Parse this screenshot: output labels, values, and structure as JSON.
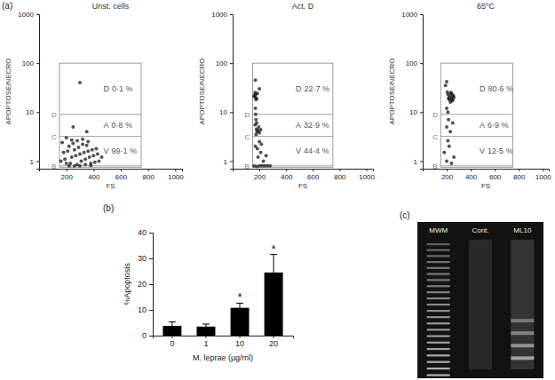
{
  "chart_data": [
    {
      "type": "scatter",
      "panel": "(a)",
      "title": "Unst. cells",
      "xlabel": "FS",
      "ylabel": "APOPTOSE/NECRO",
      "log": "y",
      "color": "#1a1a1a",
      "xlim": [
        0,
        1050
      ],
      "ylim": [
        0.7,
        1000
      ],
      "xticks": [
        200,
        400,
        600,
        800,
        1000
      ],
      "yticks": [
        1,
        10,
        100,
        1000
      ],
      "x": [
        160,
        180,
        200,
        220,
        240,
        260,
        280,
        300,
        320,
        340,
        360,
        380,
        400,
        420,
        440,
        460,
        170,
        190,
        210,
        230,
        250,
        270,
        290,
        310,
        330,
        350,
        370,
        390,
        410,
        430,
        200,
        240,
        280,
        320,
        360,
        260,
        300,
        340,
        220,
        380,
        300,
        250,
        350
      ],
      "values": [
        1.0,
        1.5,
        0.9,
        2.0,
        1.2,
        1.7,
        0.85,
        1.4,
        2.2,
        1.1,
        1.6,
        0.9,
        1.3,
        1.8,
        1.0,
        1.2,
        2.4,
        1.1,
        1.6,
        0.9,
        2.3,
        1.3,
        1.9,
        1.0,
        1.5,
        2.1,
        1.2,
        1.7,
        0.95,
        1.4,
        3.0,
        2.7,
        2.6,
        2.8,
        2.5,
        0.8,
        0.8,
        0.85,
        0.8,
        0.82,
        40,
        5,
        4
      ],
      "gate": {
        "x": [
          150,
          750
        ],
        "y": [
          0.75,
          100
        ]
      },
      "gate_lines": [
        {
          "name": "D",
          "value": 9
        },
        {
          "name": "C",
          "value": 3.2
        },
        {
          "name": "B",
          "value": 0.8
        }
      ],
      "regions": [
        {
          "name": "D",
          "value": 0.1,
          "label": "0·1 %"
        },
        {
          "name": "A",
          "value": 0.8,
          "label": "0·8 %"
        },
        {
          "name": "V",
          "value": 99.1,
          "label": "99·1 %"
        }
      ]
    },
    {
      "type": "scatter",
      "title": "Act. D",
      "xlabel": "FS",
      "ylabel": "APOPTOSE/NECRO",
      "log": "y",
      "color": "#1a1a1a",
      "xlim": [
        0,
        1050
      ],
      "ylim": [
        0.7,
        1000
      ],
      "xticks": [
        200,
        400,
        600,
        800,
        1000
      ],
      "yticks": [
        1,
        10,
        100,
        1000
      ],
      "x": [
        165,
        170,
        175,
        168,
        172,
        180,
        160,
        185,
        170,
        172,
        175,
        168,
        178,
        182,
        190,
        200,
        210,
        175,
        180,
        195,
        160,
        180,
        200,
        220,
        240,
        260,
        280,
        190,
        210,
        230,
        250,
        170,
        200,
        185,
        215,
        170,
        200
      ],
      "values": [
        22,
        20,
        18,
        25,
        23,
        19,
        21,
        24,
        12,
        9,
        7,
        5.5,
        4.5,
        4,
        4.2,
        3.8,
        4.4,
        3.5,
        6,
        5,
        0.8,
        0.78,
        0.8,
        0.8,
        0.8,
        0.8,
        0.8,
        1.2,
        1.5,
        1.0,
        1.3,
        2.0,
        2.5,
        1.8,
        2.2,
        45,
        30
      ],
      "gate": {
        "x": [
          150,
          750
        ],
        "y": [
          0.75,
          100
        ]
      },
      "gate_lines": [
        {
          "name": "D",
          "value": 9
        },
        {
          "name": "C",
          "value": 3.2
        },
        {
          "name": "B",
          "value": 0.8
        }
      ],
      "regions": [
        {
          "name": "D",
          "value": 22.7,
          "label": "22·7 %"
        },
        {
          "name": "A",
          "value": 32.9,
          "label": "32·9 %"
        },
        {
          "name": "V",
          "value": 44.4,
          "label": "44·4 %"
        }
      ]
    },
    {
      "type": "scatter",
      "title": "65ºC",
      "xlabel": "FS",
      "ylabel": "APOPTOSE/NECRO",
      "log": "y",
      "color": "#1a1a1a",
      "xlim": [
        0,
        1050
      ],
      "ylim": [
        0.7,
        1000
      ],
      "xticks": [
        200,
        400,
        600,
        800,
        1000
      ],
      "yticks": [
        1,
        10,
        100,
        1000
      ],
      "x": [
        220,
        230,
        240,
        250,
        210,
        225,
        235,
        245,
        255,
        215,
        260,
        205,
        230,
        240,
        250,
        190,
        200,
        200,
        230,
        250,
        215,
        180,
        200,
        220,
        240,
        260,
        210,
        200,
        210
      ],
      "values": [
        20,
        22,
        19,
        21,
        23,
        18,
        25,
        17,
        22,
        19,
        20,
        26,
        16,
        24,
        18,
        35,
        42,
        5,
        4,
        6,
        7,
        1.5,
        1.0,
        2.0,
        0.9,
        1.2,
        2.6,
        12,
        10
      ],
      "gate": {
        "x": [
          150,
          750
        ],
        "y": [
          0.75,
          100
        ]
      },
      "gate_lines": [
        {
          "name": "D",
          "value": 9
        },
        {
          "name": "C",
          "value": 3.2
        },
        {
          "name": "B",
          "value": 0.8
        }
      ],
      "regions": [
        {
          "name": "D",
          "value": 80.6,
          "label": "80·6 %"
        },
        {
          "name": "A",
          "value": 6.9,
          "label": "6·9 %"
        },
        {
          "name": "V",
          "value": 12.5,
          "label": "12·5 %"
        }
      ]
    },
    {
      "type": "bar",
      "panel": "(b)",
      "xlabel": "M. leprae (μg/ml)",
      "ylabel": "%Apoptosis",
      "categories": [
        "0",
        "1",
        "10",
        "20"
      ],
      "values": [
        3.8,
        3.5,
        10.8,
        24.5
      ],
      "errors": [
        1.5,
        1.0,
        1.8,
        7.0
      ],
      "annotations": [
        null,
        null,
        "*",
        "*"
      ],
      "color": "#000000",
      "ylim": [
        0,
        40
      ],
      "yticks": [
        0,
        10,
        20,
        30,
        40
      ]
    },
    {
      "type": "gel",
      "panel": "(c)",
      "lanes": [
        "MWM",
        "Cont.",
        "ML10"
      ]
    }
  ]
}
